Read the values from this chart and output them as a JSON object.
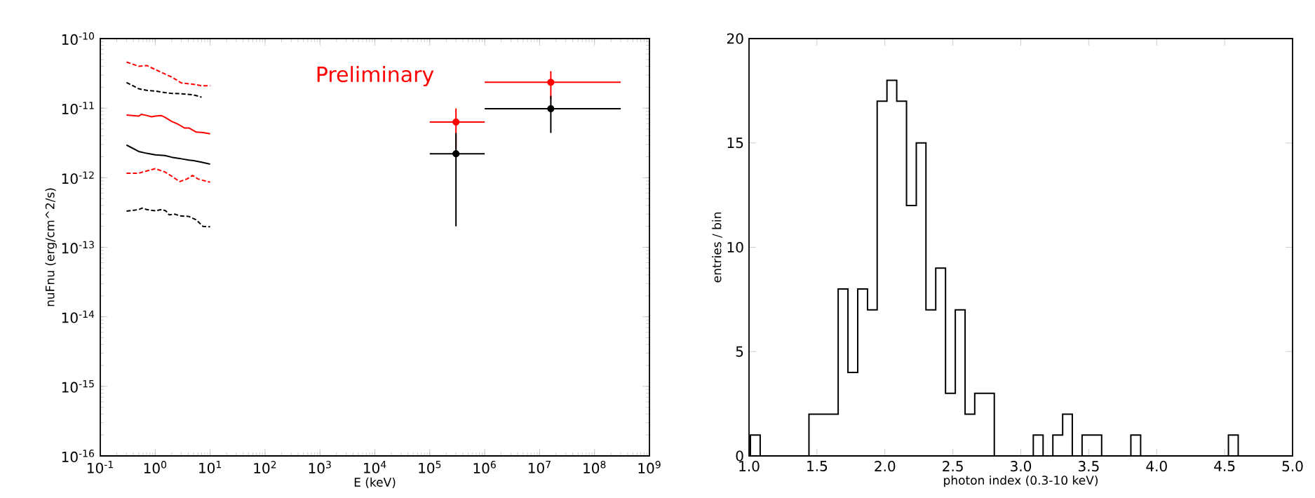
{
  "chart_data": [
    {
      "type": "line",
      "xlabel": "E (keV)",
      "ylabel": "nuFnu (erg/cm^2/s)",
      "log": "xy",
      "grid": false,
      "annotations": [
        "Preliminary"
      ],
      "xlim": [
        0.1,
        1000000000
      ],
      "ylim": [
        1e-16,
        1e-10
      ],
      "xticks": [
        {
          "value": 0.1,
          "label": "10$^{-1}$"
        },
        {
          "value": 1,
          "label": "10$^{0}$"
        },
        {
          "value": 10,
          "label": "10$^{1}$"
        },
        {
          "value": 100,
          "label": "10$^{2}$"
        },
        {
          "value": 1000,
          "label": "10$^{3}$"
        },
        {
          "value": 10000,
          "label": "10$^{4}$"
        },
        {
          "value": 100000,
          "label": "10$^{5}$"
        },
        {
          "value": 1000000,
          "label": "10$^{6}$"
        },
        {
          "value": 10000000,
          "label": "10$^{7}$"
        },
        {
          "value": 100000000,
          "label": "10$^{8}$"
        },
        {
          "value": 1000000000,
          "label": "10$^{9}$"
        }
      ],
      "yticks": [
        {
          "value": 1e-16,
          "label": "10$^{-16}$"
        },
        {
          "value": 1e-15,
          "label": "10$^{-15}$"
        },
        {
          "value": 1e-14,
          "label": "10$^{-14}$"
        },
        {
          "value": 1e-13,
          "label": "10$^{-13}$"
        },
        {
          "value": 1e-12,
          "label": "10$^{-12}$"
        },
        {
          "value": 1e-11,
          "label": "10$^{-11}$"
        },
        {
          "value": 1e-10,
          "label": "10$^{-10}$"
        }
      ],
      "series": [
        {
          "type": "line",
          "color": "#ff0000",
          "line_style": "dashed",
          "x": [
            0.3,
            0.5,
            0.7,
            1,
            1.5,
            2,
            3,
            5,
            7,
            10
          ],
          "values": [
            4.6e-11,
            4e-11,
            4.1e-11,
            3.6e-11,
            3.1e-11,
            2.8e-11,
            2.3e-11,
            2.2e-11,
            2.1e-11,
            2.1e-11
          ]
        },
        {
          "type": "line",
          "color": "#000000",
          "line_style": "dashed",
          "x": [
            0.3,
            0.5,
            0.7,
            1,
            1.5,
            2,
            3,
            5,
            7
          ],
          "values": [
            2.34e-11,
            1.9e-11,
            1.8e-11,
            1.76e-11,
            1.67e-11,
            1.63e-11,
            1.61e-11,
            1.55e-11,
            1.44e-11
          ]
        },
        {
          "type": "line",
          "color": "#ff0000",
          "line_style": "solid",
          "x": [
            0.3,
            0.5,
            0.56,
            0.7,
            0.86,
            1,
            1.3,
            1.5,
            2,
            2.5,
            3.4,
            4.1,
            5.6,
            7.4,
            10
          ],
          "values": [
            7.98e-12,
            7.68e-12,
            8.15e-12,
            7.85e-12,
            7.5e-12,
            7.68e-12,
            7.8e-12,
            7.4e-12,
            6.45e-12,
            5.98e-12,
            5.19e-12,
            5.19e-12,
            4.53e-12,
            4.46e-12,
            4.27e-12
          ]
        },
        {
          "type": "line",
          "color": "#000000",
          "line_style": "solid",
          "x": [
            0.3,
            0.5,
            0.7,
            1,
            1.5,
            2,
            3,
            4.1,
            5,
            7,
            10
          ],
          "values": [
            2.95e-12,
            2.38e-12,
            2.24e-12,
            2.13e-12,
            2.08e-12,
            1.97e-12,
            1.87e-12,
            1.79e-12,
            1.76e-12,
            1.67e-12,
            1.57e-12
          ]
        },
        {
          "type": "line",
          "color": "#ff0000",
          "line_style": "dashed",
          "x": [
            0.3,
            0.5,
            0.7,
            1,
            1.5,
            2,
            2.8,
            3.8,
            4.8,
            6,
            10
          ],
          "values": [
            1.16e-12,
            1.16e-12,
            1.25e-12,
            1.35e-12,
            1.21e-12,
            1.05e-12,
            8.8e-13,
            9.6e-13,
            1.08e-12,
            9.6e-13,
            8.6e-13
          ]
        },
        {
          "type": "line",
          "color": "#000000",
          "line_style": "dashed",
          "x": [
            0.3,
            0.5,
            0.58,
            0.7,
            1,
            1.3,
            1.55,
            1.8,
            2.3,
            2.8,
            4.1,
            5.6,
            7.4,
            10
          ],
          "values": [
            3.3e-13,
            3.48e-13,
            3.66e-13,
            3.48e-13,
            3.35e-13,
            3.48e-13,
            3.35e-13,
            2.92e-13,
            2.99e-13,
            2.83e-13,
            2.77e-13,
            2.47e-13,
            2e-13,
            1.97e-13
          ]
        },
        {
          "type": "scatter",
          "color": "#ff0000",
          "marker": "circle",
          "x": [
            300000,
            16000000
          ],
          "values": [
            6.3e-12,
            2.35e-11
          ],
          "errors": [
            [
              2.6e-12,
              9.9e-12
            ],
            [
              1.35e-11,
              3.4e-11
            ]
          ],
          "xerrors": [
            [
              100000,
              1000000
            ],
            [
              1000000,
              300000000
            ]
          ]
        },
        {
          "type": "scatter",
          "color": "#000000",
          "marker": "circle",
          "x": [
            300000,
            16000000
          ],
          "values": [
            2.21e-12,
            9.8e-12
          ],
          "errors": [
            [
              2e-13,
              4.4e-12
            ],
            [
              4.4e-12,
              1.5e-11
            ]
          ],
          "xerrors": [
            [
              100000,
              1000000
            ],
            [
              1000000,
              300000000
            ]
          ]
        }
      ]
    },
    {
      "type": "histogram",
      "xlabel": "photon index (0.3-10 keV)",
      "ylabel": "entries / bin",
      "grid": false,
      "color": "#000000",
      "xlim": [
        1.0,
        5.0
      ],
      "ylim": [
        0,
        20
      ],
      "xticks": [
        {
          "value": 1.0,
          "label": "1.0"
        },
        {
          "value": 1.5,
          "label": "1.5"
        },
        {
          "value": 2.0,
          "label": "2.0"
        },
        {
          "value": 2.5,
          "label": "2.5"
        },
        {
          "value": 3.0,
          "label": "3.0"
        },
        {
          "value": 3.5,
          "label": "3.5"
        },
        {
          "value": 4.0,
          "label": "4.0"
        },
        {
          "value": 4.5,
          "label": "4.5"
        },
        {
          "value": 5.0,
          "label": "5.0"
        }
      ],
      "yticks": [
        0,
        5,
        10,
        15,
        20
      ],
      "bins": [
        1.01,
        1.082,
        1.154,
        1.225,
        1.297,
        1.369,
        1.441,
        1.513,
        1.584,
        1.656,
        1.728,
        1.8,
        1.872,
        1.943,
        2.015,
        2.087,
        2.159,
        2.231,
        2.302,
        2.374,
        2.446,
        2.518,
        2.59,
        2.661,
        2.733,
        2.805,
        2.877,
        2.949,
        3.02,
        3.092,
        3.164,
        3.236,
        3.308,
        3.379,
        3.451,
        3.523,
        3.595,
        3.667,
        3.738,
        3.81,
        3.882,
        3.954,
        4.026,
        4.097,
        4.169,
        4.241,
        4.313,
        4.385,
        4.456,
        4.528,
        4.6
      ],
      "values": [
        1,
        0,
        0,
        0,
        0,
        0,
        2,
        2,
        2,
        8,
        4,
        8,
        7,
        17,
        18,
        17,
        12,
        15,
        7,
        9,
        3,
        7,
        2,
        3,
        3,
        0,
        0,
        0,
        0,
        1,
        0,
        1,
        2,
        0,
        1,
        1,
        0,
        0,
        0,
        1,
        0,
        0,
        0,
        0,
        0,
        0,
        0,
        0,
        0,
        1
      ]
    }
  ]
}
